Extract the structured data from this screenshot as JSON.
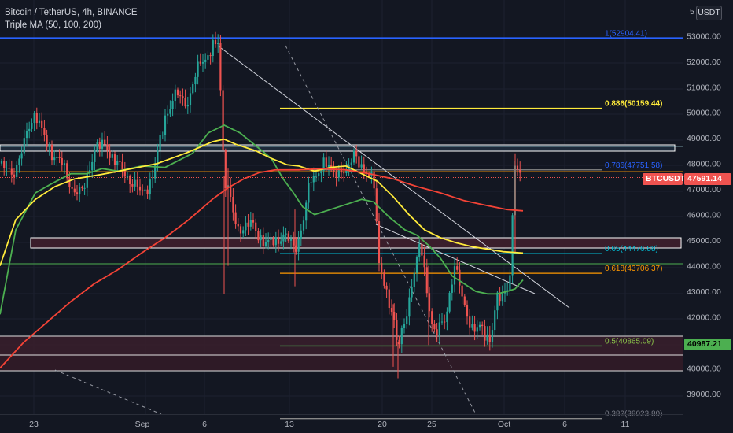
{
  "header": {
    "title": "Bitcoin / TetherUS, 4h, BINANCE",
    "indicator": "Triple MA (50, 100, 200)"
  },
  "axis": {
    "currency_button": "USDT",
    "y_ticks": [
      "53000.00",
      "52000.00",
      "51000.00",
      "50000.00",
      "49000.00",
      "48000.00",
      "47000.00",
      "46000.00",
      "45000.00",
      "44000.00",
      "43000.00",
      "42000.00",
      "41000.00",
      "40000.00",
      "39000.00"
    ],
    "top_partial_tick": "5",
    "x_ticks": [
      "23",
      "Sep",
      "6",
      "13",
      "20",
      "25",
      "Oct",
      "6",
      "11"
    ]
  },
  "price_tags": {
    "symbol": "BTCUSDT",
    "last_price": "47591.14",
    "green_level": "40987.21"
  },
  "fib_labels": {
    "f1": "1(52904.41)",
    "f0886": "0.886(50159.44)",
    "f0786": "0.786(47751.58)",
    "f065": "0.65(44476.88)",
    "f0618": "0.618(43706.37)",
    "f05": "0.5(40865.09)",
    "f0382": "0.382(38023.80)"
  },
  "colors": {
    "background": "#131722",
    "up": "#26a69a",
    "down": "#ef5350",
    "ma50": "#4caf50",
    "ma100": "#ffeb3b",
    "ma200": "#f44336",
    "fib1": "#2962ff",
    "fib0886": "#ffeb3b",
    "fib065": "#00bcd4",
    "fib0618": "#ff9800",
    "fib05": "#4caf50"
  },
  "chart_data": {
    "type": "candlestick",
    "symbol": "BTCUSDT",
    "timeframe": "4h",
    "ylim": [
      38500,
      54200
    ],
    "moving_averages": [
      {
        "name": "MA50",
        "points": [
          [
            0,
            42100
          ],
          [
            20,
            45400
          ],
          [
            45,
            46850
          ],
          [
            65,
            47200
          ],
          [
            90,
            47600
          ],
          [
            110,
            47600
          ],
          [
            130,
            47800
          ],
          [
            150,
            47700
          ],
          [
            180,
            47900
          ],
          [
            210,
            47850
          ],
          [
            245,
            48400
          ],
          [
            265,
            49200
          ],
          [
            285,
            49500
          ],
          [
            305,
            49200
          ],
          [
            325,
            48700
          ],
          [
            345,
            48200
          ],
          [
            360,
            47400
          ],
          [
            372,
            46900
          ],
          [
            385,
            46300
          ],
          [
            400,
            46000
          ],
          [
            420,
            46200
          ],
          [
            440,
            46400
          ],
          [
            460,
            46600
          ],
          [
            475,
            46500
          ],
          [
            495,
            45900
          ],
          [
            515,
            45400
          ],
          [
            530,
            45200
          ],
          [
            545,
            44800
          ],
          [
            560,
            44300
          ],
          [
            575,
            43600
          ],
          [
            590,
            43300
          ],
          [
            605,
            43000
          ],
          [
            620,
            42900
          ],
          [
            632,
            42900
          ],
          [
            645,
            43000
          ],
          [
            655,
            43100
          ],
          [
            665,
            43450
          ]
        ]
      },
      {
        "name": "MA100",
        "points": [
          [
            0,
            44000
          ],
          [
            20,
            45800
          ],
          [
            45,
            46600
          ],
          [
            70,
            47100
          ],
          [
            95,
            47400
          ],
          [
            125,
            47550
          ],
          [
            160,
            47750
          ],
          [
            200,
            48000
          ],
          [
            240,
            48450
          ],
          [
            270,
            48850
          ],
          [
            285,
            48950
          ],
          [
            300,
            48750
          ],
          [
            325,
            48500
          ],
          [
            345,
            48200
          ],
          [
            365,
            47950
          ],
          [
            380,
            47900
          ],
          [
            400,
            47700
          ],
          [
            420,
            47850
          ],
          [
            440,
            47900
          ],
          [
            460,
            47600
          ],
          [
            480,
            47300
          ],
          [
            500,
            46700
          ],
          [
            520,
            46000
          ],
          [
            540,
            45400
          ],
          [
            560,
            45100
          ],
          [
            580,
            44900
          ],
          [
            600,
            44750
          ],
          [
            620,
            44650
          ],
          [
            640,
            44550
          ],
          [
            665,
            44500
          ]
        ]
      },
      {
        "name": "MA200",
        "points": [
          [
            0,
            40000
          ],
          [
            30,
            41000
          ],
          [
            60,
            41800
          ],
          [
            90,
            42600
          ],
          [
            120,
            43300
          ],
          [
            150,
            43850
          ],
          [
            180,
            44500
          ],
          [
            210,
            45100
          ],
          [
            240,
            45800
          ],
          [
            270,
            46600
          ],
          [
            290,
            47050
          ],
          [
            310,
            47400
          ],
          [
            330,
            47650
          ],
          [
            350,
            47750
          ],
          [
            380,
            47750
          ],
          [
            410,
            47800
          ],
          [
            440,
            47750
          ],
          [
            470,
            47600
          ],
          [
            500,
            47400
          ],
          [
            530,
            47100
          ],
          [
            560,
            46850
          ],
          [
            590,
            46550
          ],
          [
            620,
            46350
          ],
          [
            645,
            46200
          ],
          [
            665,
            46150
          ]
        ]
      }
    ],
    "fibonacci": [
      {
        "level": "1",
        "price": 52904.41
      },
      {
        "level": "0.886",
        "price": 50159.44
      },
      {
        "level": "0.786",
        "price": 47751.58
      },
      {
        "level": "0.65",
        "price": 44476.88
      },
      {
        "level": "0.618",
        "price": 43706.37
      },
      {
        "level": "0.5",
        "price": 40865.09
      },
      {
        "level": "0.382",
        "price": 38023.8
      }
    ],
    "last_price": 47591.14,
    "green_level": 40987.21
  }
}
